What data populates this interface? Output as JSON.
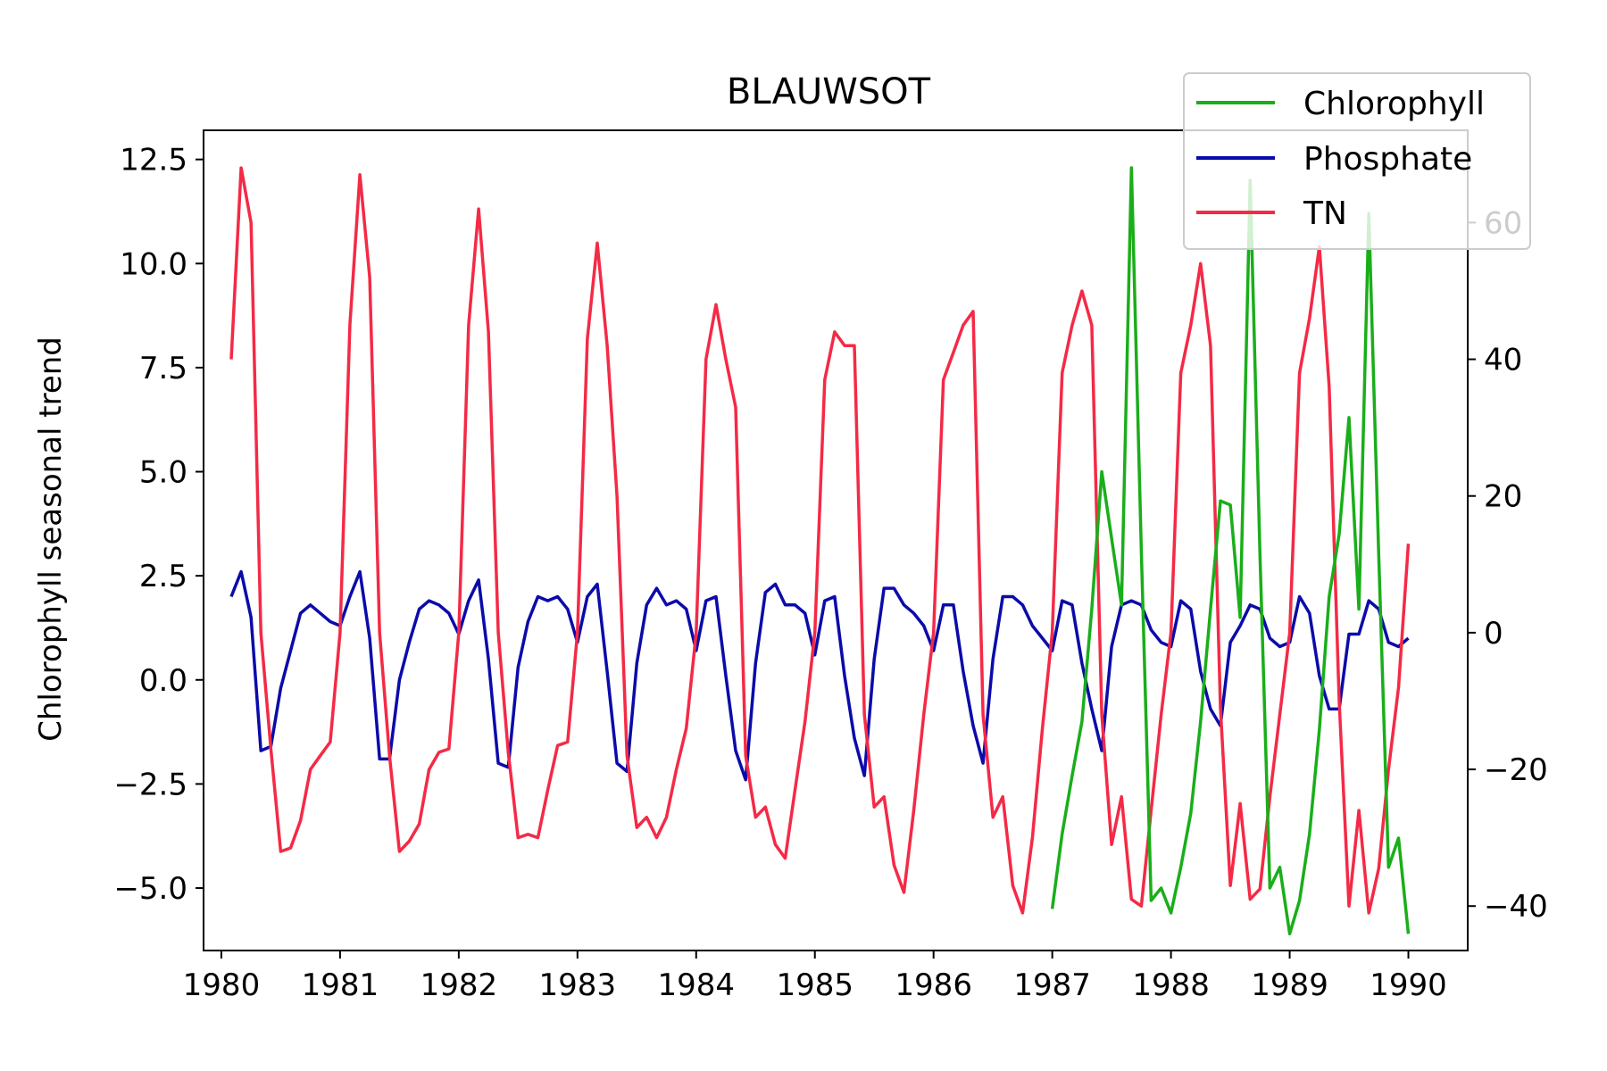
{
  "chart_data": {
    "type": "line",
    "title": "BLAUWSOT",
    "xlabel": "",
    "ylabel": "Chlorophyll seasonal trend",
    "y2label": "",
    "xlim": [
      1979.85,
      1990.5
    ],
    "ylim": [
      -6.5,
      13.2
    ],
    "y2lim": [
      -46.5,
      73.5
    ],
    "xticks": [
      1980,
      1981,
      1982,
      1983,
      1984,
      1985,
      1986,
      1987,
      1988,
      1989,
      1990
    ],
    "xtick_labels": [
      "1980",
      "1981",
      "1982",
      "1983",
      "1984",
      "1985",
      "1986",
      "1987",
      "1988",
      "1989",
      "1990"
    ],
    "yticks": [
      -5.0,
      -2.5,
      0.0,
      2.5,
      5.0,
      7.5,
      10.0,
      12.5
    ],
    "ytick_labels": [
      "−5.0",
      "−2.5",
      "0.0",
      "2.5",
      "5.0",
      "7.5",
      "10.0",
      "12.5"
    ],
    "y2ticks": [
      -40,
      -20,
      0,
      20,
      40,
      60
    ],
    "y2tick_labels": [
      "−40",
      "−20",
      "0",
      "20",
      "40",
      "60"
    ],
    "grid": false,
    "legend_position": "top-right",
    "colors": {
      "chlorophyll": "#1aae1a",
      "phosphate": "#0b0baa",
      "tn": "#f42a46"
    },
    "series": [
      {
        "name": "Chlorophyll",
        "axis": "left",
        "color": "#1aae1a",
        "x": [
          1987.0,
          1987.083,
          1987.167,
          1987.25,
          1987.333,
          1987.417,
          1987.5,
          1987.583,
          1987.667,
          1987.75,
          1987.833,
          1987.917,
          1988.0,
          1988.083,
          1988.167,
          1988.25,
          1988.333,
          1988.417,
          1988.5,
          1988.583,
          1988.667,
          1988.75,
          1988.833,
          1988.917,
          1989.0,
          1989.083,
          1989.167,
          1989.25,
          1989.333,
          1989.417,
          1989.5,
          1989.583,
          1989.667,
          1989.75,
          1989.833,
          1989.917,
          1990.0
        ],
        "values": [
          -5.5,
          -3.7,
          -2.3,
          -1.0,
          1.7,
          5.0,
          3.4,
          1.8,
          12.3,
          3.1,
          -5.3,
          -5.0,
          -5.6,
          -4.5,
          -3.2,
          -1.0,
          1.7,
          4.3,
          4.2,
          1.5,
          12.0,
          3.0,
          -5.0,
          -4.5,
          -6.1,
          -5.3,
          -3.7,
          -1.2,
          2.0,
          3.5,
          6.3,
          1.7,
          11.2,
          3.0,
          -4.5,
          -3.8,
          -6.1
        ]
      },
      {
        "name": "Phosphate",
        "axis": "left",
        "color": "#0b0baa",
        "x": [
          1980.083,
          1980.167,
          1980.25,
          1980.333,
          1980.417,
          1980.5,
          1980.583,
          1980.667,
          1980.75,
          1980.833,
          1980.917,
          1981.0,
          1981.083,
          1981.167,
          1981.25,
          1981.333,
          1981.417,
          1981.5,
          1981.583,
          1981.667,
          1981.75,
          1981.833,
          1981.917,
          1982.0,
          1982.083,
          1982.167,
          1982.25,
          1982.333,
          1982.417,
          1982.5,
          1982.583,
          1982.667,
          1982.75,
          1982.833,
          1982.917,
          1983.0,
          1983.083,
          1983.167,
          1983.25,
          1983.333,
          1983.417,
          1983.5,
          1983.583,
          1983.667,
          1983.75,
          1983.833,
          1983.917,
          1984.0,
          1984.083,
          1984.167,
          1984.25,
          1984.333,
          1984.417,
          1984.5,
          1984.583,
          1984.667,
          1984.75,
          1984.833,
          1984.917,
          1985.0,
          1985.083,
          1985.167,
          1985.25,
          1985.333,
          1985.417,
          1985.5,
          1985.583,
          1985.667,
          1985.75,
          1985.833,
          1985.917,
          1986.0,
          1986.083,
          1986.167,
          1986.25,
          1986.333,
          1986.417,
          1986.5,
          1986.583,
          1986.667,
          1986.75,
          1986.833,
          1986.917,
          1987.0,
          1987.083,
          1987.167,
          1987.25,
          1987.333,
          1987.417,
          1987.5,
          1987.583,
          1987.667,
          1987.75,
          1987.833,
          1987.917,
          1988.0,
          1988.083,
          1988.167,
          1988.25,
          1988.333,
          1988.417,
          1988.5,
          1988.583,
          1988.667,
          1988.75,
          1988.833,
          1988.917,
          1989.0,
          1989.083,
          1989.167,
          1989.25,
          1989.333,
          1989.417,
          1989.5,
          1989.583,
          1989.667,
          1989.75,
          1989.833,
          1989.917,
          1990.0
        ],
        "values": [
          2.0,
          2.6,
          1.5,
          -1.7,
          -1.6,
          -0.2,
          0.7,
          1.6,
          1.8,
          1.6,
          1.4,
          1.3,
          2.0,
          2.6,
          1.0,
          -1.9,
          -1.9,
          0.0,
          0.9,
          1.7,
          1.9,
          1.8,
          1.6,
          1.1,
          1.9,
          2.4,
          0.5,
          -2.0,
          -2.1,
          0.3,
          1.4,
          2.0,
          1.9,
          2.0,
          1.7,
          0.9,
          2.0,
          2.3,
          0.2,
          -2.0,
          -2.2,
          0.4,
          1.8,
          2.2,
          1.8,
          1.9,
          1.7,
          0.7,
          1.9,
          2.0,
          0.1,
          -1.7,
          -2.4,
          0.4,
          2.1,
          2.3,
          1.8,
          1.8,
          1.6,
          0.6,
          1.9,
          2.0,
          0.1,
          -1.4,
          -2.3,
          0.5,
          2.2,
          2.2,
          1.8,
          1.6,
          1.3,
          0.7,
          1.8,
          1.8,
          0.2,
          -1.1,
          -2.0,
          0.5,
          2.0,
          2.0,
          1.8,
          1.3,
          1.0,
          0.7,
          1.9,
          1.8,
          0.4,
          -0.7,
          -1.7,
          0.8,
          1.8,
          1.9,
          1.8,
          1.2,
          0.9,
          0.8,
          1.9,
          1.7,
          0.2,
          -0.7,
          -1.1,
          0.9,
          1.3,
          1.8,
          1.7,
          1.0,
          0.8,
          0.9,
          2.0,
          1.6,
          0.1,
          -0.7,
          -0.7,
          1.1,
          1.1,
          1.9,
          1.7,
          0.9,
          0.8,
          1.0
        ]
      },
      {
        "name": "TN",
        "axis": "right",
        "color": "#f42a46",
        "x": [
          1980.083,
          1980.167,
          1980.25,
          1980.333,
          1980.417,
          1980.5,
          1980.583,
          1980.667,
          1980.75,
          1980.833,
          1980.917,
          1981.0,
          1981.083,
          1981.167,
          1981.25,
          1981.333,
          1981.417,
          1981.5,
          1981.583,
          1981.667,
          1981.75,
          1981.833,
          1981.917,
          1982.0,
          1982.083,
          1982.167,
          1982.25,
          1982.333,
          1982.417,
          1982.5,
          1982.583,
          1982.667,
          1982.75,
          1982.833,
          1982.917,
          1983.0,
          1983.083,
          1983.167,
          1983.25,
          1983.333,
          1983.417,
          1983.5,
          1983.583,
          1983.667,
          1983.75,
          1983.833,
          1983.917,
          1984.0,
          1984.083,
          1984.167,
          1984.25,
          1984.333,
          1984.417,
          1984.5,
          1984.583,
          1984.667,
          1984.75,
          1984.833,
          1984.917,
          1985.0,
          1985.083,
          1985.167,
          1985.25,
          1985.333,
          1985.417,
          1985.5,
          1985.583,
          1985.667,
          1985.75,
          1985.833,
          1985.917,
          1986.0,
          1986.083,
          1986.167,
          1986.25,
          1986.333,
          1986.417,
          1986.5,
          1986.583,
          1986.667,
          1986.75,
          1986.833,
          1986.917,
          1987.0,
          1987.083,
          1987.167,
          1987.25,
          1987.333,
          1987.417,
          1987.5,
          1987.583,
          1987.667,
          1987.75,
          1987.833,
          1987.917,
          1988.0,
          1988.083,
          1988.167,
          1988.25,
          1988.333,
          1988.417,
          1988.5,
          1988.583,
          1988.667,
          1988.75,
          1988.833,
          1988.917,
          1989.0,
          1989.083,
          1989.167,
          1989.25,
          1989.333,
          1989.417,
          1989.5,
          1989.583,
          1989.667,
          1989.75,
          1989.833,
          1989.917,
          1990.0
        ],
        "values": [
          40.0,
          68.0,
          60.0,
          0.0,
          -17.0,
          -32.0,
          -31.5,
          -27.5,
          -20.0,
          -18.0,
          -16.0,
          0.0,
          45.0,
          67.0,
          52.0,
          0.0,
          -18.0,
          -32.0,
          -30.5,
          -28.0,
          -20.0,
          -17.5,
          -17.0,
          0.0,
          45.0,
          62.0,
          44.0,
          0.0,
          -17.5,
          -30.0,
          -29.5,
          -30.0,
          -23.0,
          -16.5,
          -16.0,
          0.0,
          43.0,
          57.0,
          42.0,
          20.0,
          -18.0,
          -28.5,
          -27.0,
          -30.0,
          -27.0,
          -20.0,
          -14.0,
          0.0,
          40.0,
          48.0,
          40.0,
          33.0,
          -18.0,
          -27.0,
          -25.5,
          -31.0,
          -33.0,
          -23.0,
          -13.0,
          0.0,
          37.0,
          44.0,
          42.0,
          42.0,
          -12.0,
          -25.5,
          -24.0,
          -34.0,
          -38.0,
          -26.0,
          -12.0,
          0.0,
          37.0,
          41.0,
          45.0,
          47.0,
          -12.0,
          -27.0,
          -24.0,
          -37.0,
          -41.0,
          -30.0,
          -14.0,
          0.0,
          38.0,
          45.0,
          50.0,
          45.0,
          -12.0,
          -31.0,
          -24.0,
          -39.0,
          -40.0,
          -26.0,
          -12.0,
          0.0,
          38.0,
          45.0,
          54.0,
          42.0,
          -11.0,
          -37.0,
          -25.0,
          -39.0,
          -37.5,
          -24.0,
          -12.0,
          0.0,
          38.0,
          46.0,
          56.5,
          36.0,
          -10.0,
          -40.0,
          -26.0,
          -41.0,
          -34.5,
          -20.0,
          -8.0,
          13.0
        ]
      }
    ]
  }
}
